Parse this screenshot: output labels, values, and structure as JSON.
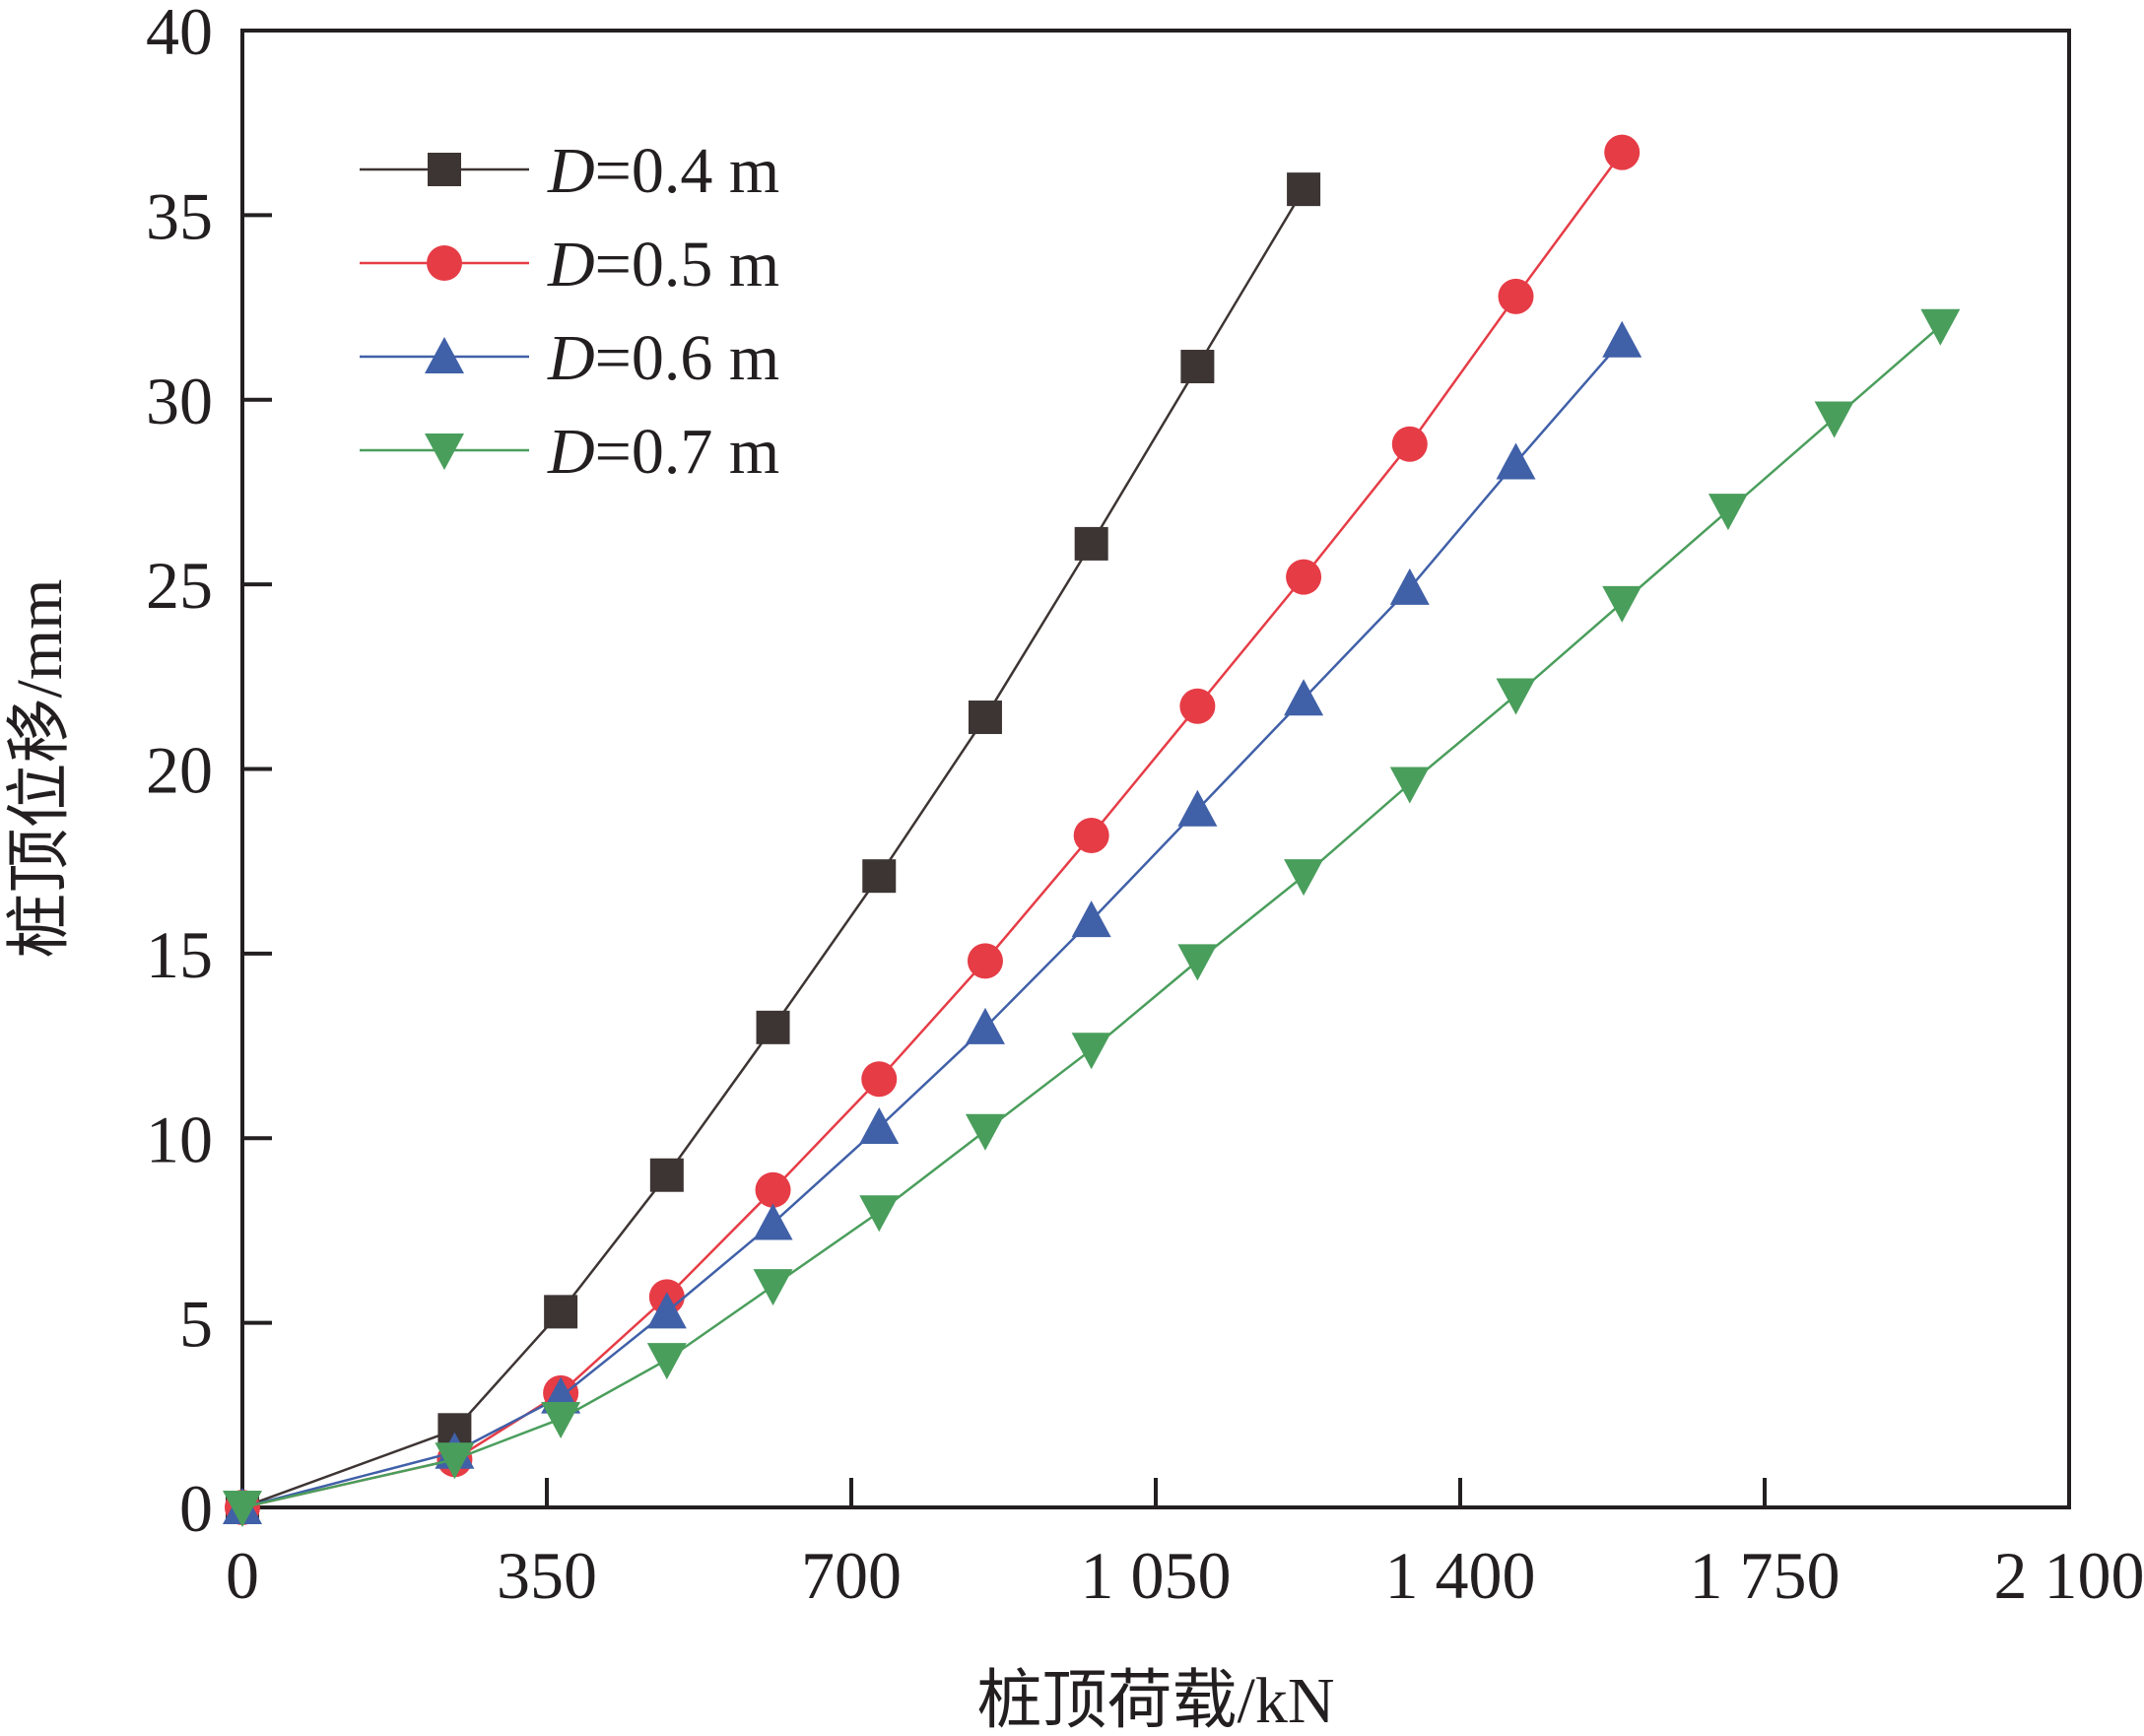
{
  "chart_data": {
    "type": "line",
    "title": "",
    "xlabel": "桩顶荷载/kN",
    "ylabel": "桩顶位移/mm",
    "xlim": [
      0,
      2100
    ],
    "ylim": [
      0,
      40
    ],
    "xticks": [
      0,
      350,
      700,
      1050,
      1400,
      1750,
      2100
    ],
    "xtick_labels": [
      "0",
      "350",
      "700",
      "1 050",
      "1 400",
      "1 750",
      "2 100"
    ],
    "yticks": [
      0,
      5,
      10,
      15,
      20,
      25,
      30,
      35,
      40
    ],
    "ytick_labels": [
      "0",
      "5",
      "10",
      "15",
      "20",
      "25",
      "30",
      "35",
      "40"
    ],
    "legend_position": "top-left",
    "grid": false,
    "series": [
      {
        "name": "D=0.4 m",
        "prefix": "D",
        "suffix": "=0.4 m",
        "color": "#3d3533",
        "marker": "square",
        "x": [
          0,
          244,
          366,
          488,
          610,
          732,
          854,
          976,
          1098,
          1220
        ],
        "y": [
          0,
          2.1,
          5.3,
          9.0,
          13.0,
          17.1,
          21.4,
          26.1,
          30.9,
          35.7
        ]
      },
      {
        "name": "D=0.5 m",
        "prefix": "D",
        "suffix": "=0.5 m",
        "color": "#e63c46",
        "marker": "circle",
        "x": [
          0,
          244,
          366,
          488,
          610,
          732,
          854,
          976,
          1098,
          1220,
          1342,
          1464,
          1586
        ],
        "y": [
          0,
          1.3,
          3.1,
          5.7,
          8.6,
          11.6,
          14.8,
          18.2,
          21.7,
          25.2,
          28.8,
          32.8,
          36.7
        ]
      },
      {
        "name": "D=0.6 m",
        "prefix": "D",
        "suffix": "=0.6 m",
        "color": "#4060a8",
        "marker": "triangle-up",
        "x": [
          0,
          244,
          366,
          488,
          610,
          732,
          854,
          976,
          1098,
          1220,
          1342,
          1464,
          1586
        ],
        "y": [
          0,
          1.5,
          3.0,
          5.3,
          7.7,
          10.3,
          13.0,
          15.9,
          18.9,
          21.9,
          24.9,
          28.3,
          31.6
        ]
      },
      {
        "name": "D=0.7 m",
        "prefix": "D",
        "suffix": "=0.7 m",
        "color": "#4a9e5c",
        "marker": "triangle-down",
        "x": [
          0,
          244,
          366,
          488,
          610,
          732,
          854,
          976,
          1098,
          1220,
          1342,
          1464,
          1586,
          1708,
          1830,
          1952
        ],
        "y": [
          0,
          1.3,
          2.4,
          4.0,
          6.0,
          8.0,
          10.2,
          12.4,
          14.8,
          17.1,
          19.6,
          22.0,
          24.5,
          27.0,
          29.5,
          32.0
        ]
      }
    ]
  }
}
